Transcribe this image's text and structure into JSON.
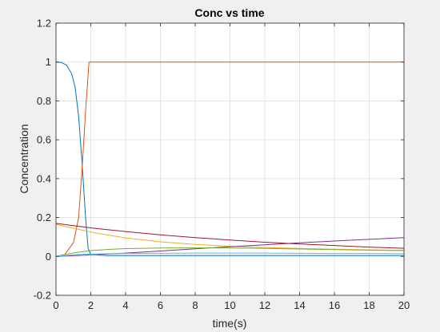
{
  "chart_data": {
    "type": "line",
    "title": "Conc vs time",
    "xlabel": "time(s)",
    "ylabel": "Concentration",
    "xlim": [
      0,
      20
    ],
    "ylim": [
      -0.2,
      1.2
    ],
    "xticks": [
      0,
      2,
      4,
      6,
      8,
      10,
      12,
      14,
      16,
      18,
      20
    ],
    "yticks": [
      -0.2,
      0,
      0.2,
      0.4,
      0.6,
      0.8,
      1,
      1.2
    ],
    "xtick_labels": [
      "0",
      "2",
      "4",
      "6",
      "8",
      "10",
      "12",
      "14",
      "16",
      "18",
      "20"
    ],
    "ytick_labels": [
      "-0.2",
      "0",
      "0.2",
      "0.4",
      "0.6",
      "0.8",
      "1",
      "1.2"
    ],
    "grid": true,
    "background": "#f0f0f0",
    "plot_background": "#ffffff",
    "series": [
      {
        "color": "#0072bd",
        "x": [
          0,
          0.3,
          0.6,
          0.9,
          1.1,
          1.3,
          1.5,
          1.7,
          1.85,
          2,
          3,
          20
        ],
        "y": [
          1.0,
          0.998,
          0.985,
          0.94,
          0.87,
          0.72,
          0.48,
          0.2,
          0.04,
          0.01,
          0.005,
          0.005
        ]
      },
      {
        "color": "#d95319",
        "x": [
          0,
          0.5,
          1.0,
          1.3,
          1.5,
          1.7,
          1.9,
          2,
          20
        ],
        "y": [
          0.0,
          0.01,
          0.07,
          0.2,
          0.45,
          0.75,
          1.0,
          1.0,
          1.0
        ]
      },
      {
        "color": "#edb120",
        "x": [
          0,
          1,
          2,
          3,
          4,
          6,
          8,
          10,
          12,
          14,
          16,
          18,
          20
        ],
        "y": [
          0.165,
          0.145,
          0.125,
          0.11,
          0.095,
          0.075,
          0.062,
          0.052,
          0.046,
          0.041,
          0.037,
          0.034,
          0.031
        ]
      },
      {
        "color": "#7e2f8e",
        "x": [
          0,
          1,
          2,
          4,
          6,
          8,
          10,
          12,
          14,
          16,
          18,
          20
        ],
        "y": [
          0.0,
          0.004,
          0.008,
          0.017,
          0.028,
          0.039,
          0.05,
          0.06,
          0.07,
          0.079,
          0.088,
          0.097
        ]
      },
      {
        "color": "#77ac30",
        "x": [
          0,
          1,
          2,
          3,
          4,
          6,
          8,
          10,
          12,
          14,
          16,
          18,
          20
        ],
        "y": [
          0.0,
          0.018,
          0.03,
          0.036,
          0.04,
          0.043,
          0.044,
          0.043,
          0.041,
          0.038,
          0.035,
          0.032,
          0.03
        ]
      },
      {
        "color": "#4dbeee",
        "x": [
          0,
          1,
          2,
          3,
          4,
          6,
          8,
          10,
          12,
          14,
          16,
          18,
          20
        ],
        "y": [
          0.0,
          0.008,
          0.012,
          0.014,
          0.015,
          0.016,
          0.017,
          0.017,
          0.017,
          0.016,
          0.015,
          0.015,
          0.014
        ]
      },
      {
        "color": "#a2142f",
        "x": [
          0,
          1,
          2,
          3,
          4,
          5,
          6,
          8,
          10,
          12,
          14,
          16,
          18,
          20
        ],
        "y": [
          0.17,
          0.158,
          0.147,
          0.137,
          0.128,
          0.119,
          0.111,
          0.097,
          0.084,
          0.073,
          0.064,
          0.056,
          0.048,
          0.042
        ]
      }
    ]
  }
}
